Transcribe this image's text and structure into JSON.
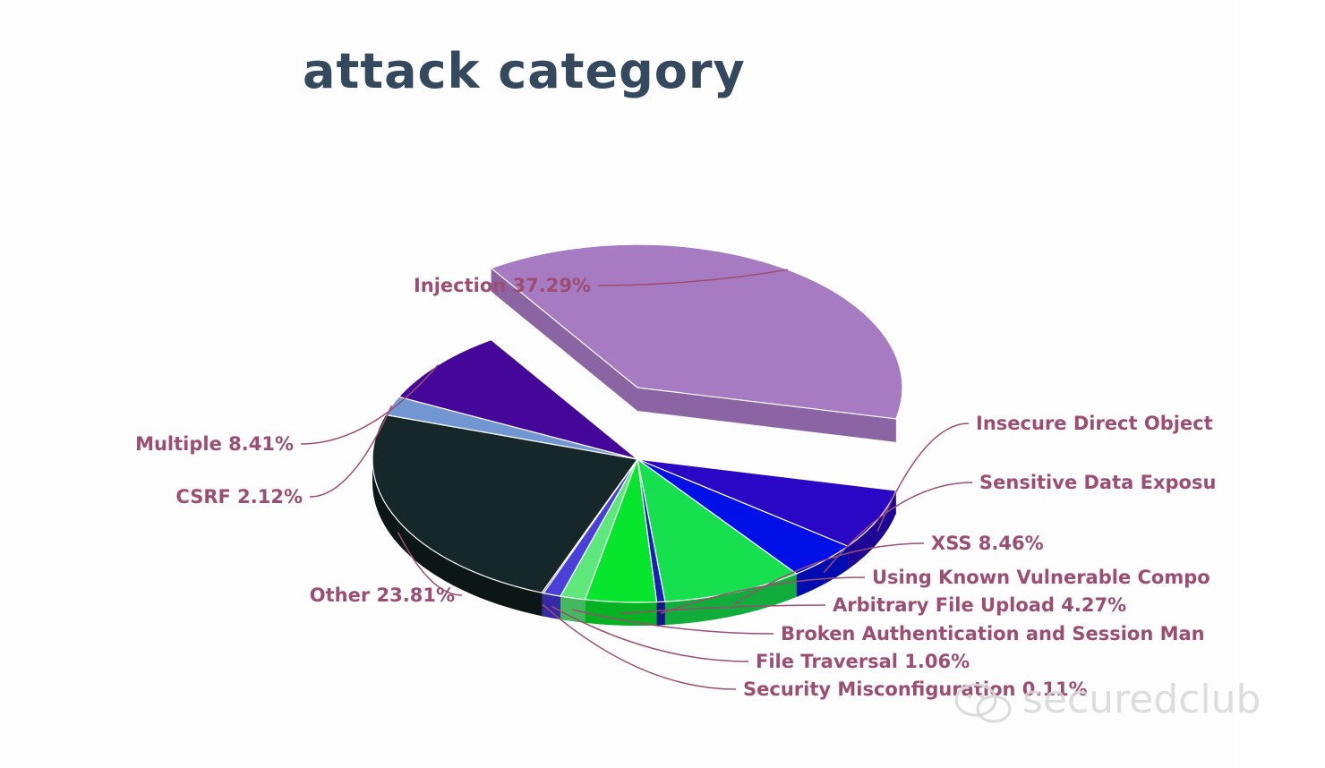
{
  "chart_data": {
    "type": "pie",
    "title": "attack category",
    "slices": [
      {
        "name": "Injection",
        "value": 37.29,
        "label": "Injection 37.29%",
        "color": "#a77bc2",
        "side": "#8a64a3"
      },
      {
        "name": "Insecure Direct Object",
        "value": 6.8,
        "label": "Insecure Direct Object",
        "color": "#2a07c5",
        "side": "#1e0595"
      },
      {
        "name": "Sensitive Data Exposu",
        "value": 4.3,
        "label": "Sensitive Data Exposu",
        "color": "#0010e6",
        "side": "#000caf"
      },
      {
        "name": "XSS",
        "value": 8.46,
        "label": "XSS 8.46%",
        "color": "#16e04e",
        "side": "#10ad3b"
      },
      {
        "name": "Using Known Vulnerable Compo",
        "value": 0.5,
        "label": "Using Known Vulnerable Compo",
        "color": "#1a1fb5",
        "side": "#12168a"
      },
      {
        "name": "Arbitrary File Upload",
        "value": 4.27,
        "label": "Arbitrary File Upload 4.27%",
        "color": "#07e52c",
        "side": "#05b322"
      },
      {
        "name": "Broken Authentication and Session Man",
        "value": 1.5,
        "label": "Broken Authentication and Session Man",
        "color": "#5ee87c",
        "side": "#44b85e"
      },
      {
        "name": "File Traversal",
        "value": 1.06,
        "label": "File Traversal 1.06%",
        "color": "#4a3fd9",
        "side": "#3529a8"
      },
      {
        "name": "Security Misconfiguration",
        "value": 0.11,
        "label": "Security Misconfiguration 0.11%",
        "color": "#2b2f8a",
        "side": "#1e2166"
      },
      {
        "name": "Other",
        "value": 23.81,
        "label": "Other 23.81%",
        "color": "#16272a",
        "side": "#0c1617"
      },
      {
        "name": "CSRF",
        "value": 2.12,
        "label": "CSRF 2.12%",
        "color": "#7196d2",
        "side": "#5677a8"
      },
      {
        "name": "Multiple",
        "value": 8.41,
        "label": "Multiple 8.41%",
        "color": "#45079a",
        "side": "#320572"
      }
    ],
    "legend": "none",
    "data_labels": "outside"
  },
  "watermark": {
    "text": "securedclub",
    "icon": "wechat-icon"
  }
}
